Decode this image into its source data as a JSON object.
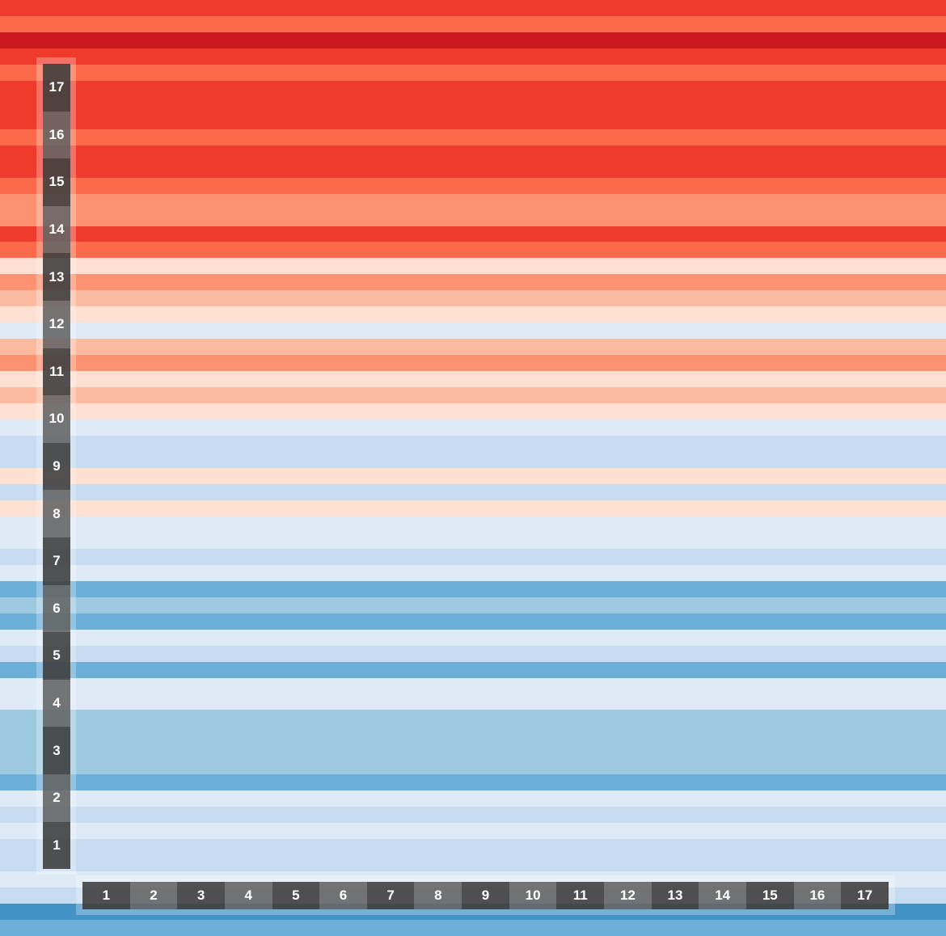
{
  "stripe_colors": [
    "#ef3b2c",
    "#fb6a4a",
    "#cb181d",
    "#ef3b2c",
    "#fb6a4a",
    "#ef3b2c",
    "#ef3b2c",
    "#ef3b2c",
    "#fb6a4a",
    "#ef3b2c",
    "#ef3b2c",
    "#fb6a4a",
    "#fc9272",
    "#fc9272",
    "#ef3b2c",
    "#fb6a4a",
    "#fee0d2",
    "#fc9272",
    "#fcbba1",
    "#fee0d2",
    "#deebf7",
    "#fcbba1",
    "#fc9272",
    "#fee0d2",
    "#fcbba1",
    "#fee0d2",
    "#deebf7",
    "#c6dbef",
    "#c6dbef",
    "#fee0d2",
    "#c6dbef",
    "#fee0d2",
    "#deebf7",
    "#deebf7",
    "#c6dbef",
    "#deebf7",
    "#6baed6",
    "#9ecae1",
    "#6baed6",
    "#deebf7",
    "#c6dbef",
    "#6baed6",
    "#deebf7",
    "#deebf7",
    "#9ecae1",
    "#9ecae1",
    "#9ecae1",
    "#9ecae1",
    "#6baed6",
    "#deebf7",
    "#c6dbef",
    "#deebf7",
    "#c6dbef",
    "#c6dbef",
    "#deebf7",
    "#c6dbef",
    "#4292c6",
    "#6baed6"
  ],
  "vertical_ruler": {
    "labels": [
      "17",
      "16",
      "15",
      "14",
      "13",
      "12",
      "11",
      "10",
      "9",
      "8",
      "7",
      "6",
      "5",
      "4",
      "3",
      "2",
      "1"
    ]
  },
  "horizontal_ruler": {
    "labels": [
      "1",
      "2",
      "3",
      "4",
      "5",
      "6",
      "7",
      "8",
      "9",
      "10",
      "11",
      "12",
      "13",
      "14",
      "15",
      "16",
      "17"
    ]
  }
}
